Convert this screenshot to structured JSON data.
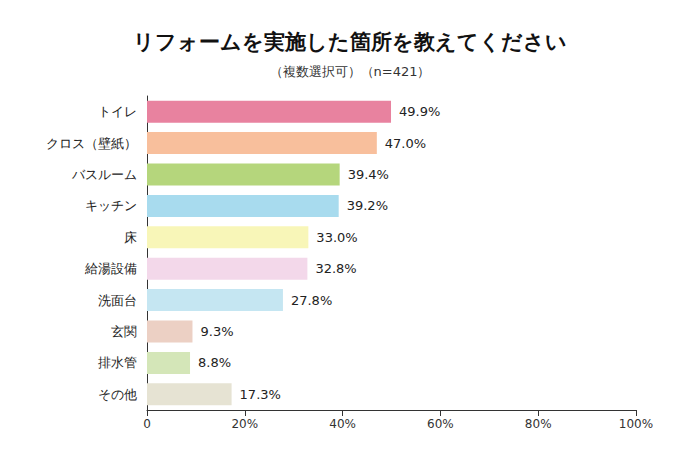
{
  "chart_data": {
    "type": "bar",
    "title": "リフォームを実施した箇所を教えてください",
    "subtitle": "（複数選択可）（n=421）",
    "orientation": "horizontal",
    "categories": [
      "トイレ",
      "クロス（壁紙）",
      "バスルーム",
      "キッチン",
      "床",
      "給湯設備",
      "洗面台",
      "玄関",
      "排水管",
      "その他"
    ],
    "values": [
      49.9,
      47.0,
      39.4,
      39.2,
      33.0,
      32.8,
      27.8,
      9.3,
      8.8,
      17.3
    ],
    "value_labels": [
      "49.9%",
      "47.0%",
      "39.4%",
      "39.2%",
      "33.0%",
      "32.8%",
      "27.8%",
      "9.3%",
      "8.8%",
      "17.3%"
    ],
    "colors": [
      "#e8829f",
      "#f8bf9c",
      "#b5d67c",
      "#a8dbee",
      "#f8f6b8",
      "#f3d8ea",
      "#c5e6f2",
      "#ecd0c4",
      "#d4e6b8",
      "#e6e3d3"
    ],
    "xlim": [
      0,
      100
    ],
    "xticks": [
      0,
      {
        "value": 20,
        "label": "20%"
      },
      {
        "value": 40,
        "label": "40%"
      },
      {
        "value": 60,
        "label": "60%"
      },
      {
        "value": 80,
        "label": "80%"
      },
      {
        "value": 100,
        "label": "100%"
      }
    ],
    "data_labels": true,
    "grid": false
  }
}
